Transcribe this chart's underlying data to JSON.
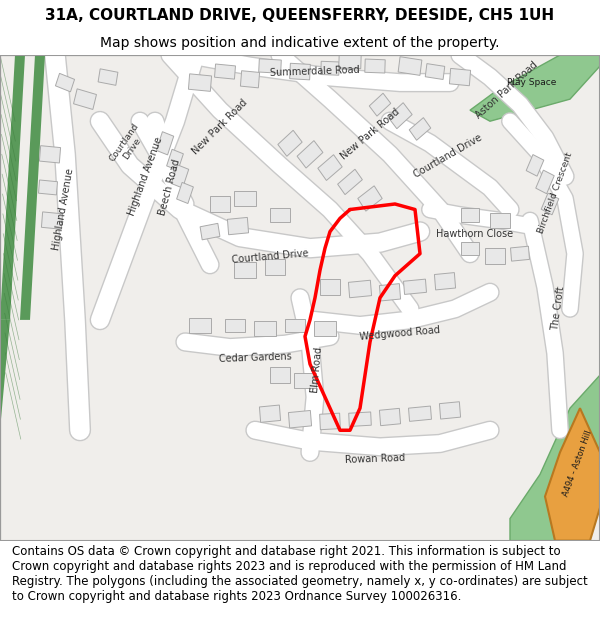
{
  "title_line1": "31A, COURTLAND DRIVE, QUEENSFERRY, DEESIDE, CH5 1UH",
  "title_line2": "Map shows position and indicative extent of the property.",
  "title_fontsize": 11,
  "subtitle_fontsize": 10,
  "footer_text": "Contains OS data © Crown copyright and database right 2021. This information is subject to Crown copyright and database rights 2023 and is reproduced with the permission of HM Land Registry. The polygons (including the associated geometry, namely x, y co-ordinates) are subject to Crown copyright and database rights 2023 Ordnance Survey 100026316.",
  "footer_fontsize": 8.5,
  "bg_color": "#f5f5f0",
  "map_bg": "#f0eeeb",
  "road_color": "#ffffff",
  "road_outline": "#c8c8c8",
  "building_fill": "#e8e8e8",
  "building_outline": "#aaaaaa",
  "green_areas": "#7fb87f",
  "green_areas2": "#9dc49d",
  "highlight_road": "#e8a040",
  "red_polygon": "#ff0000",
  "diagonal_green1": "#5a9a5a",
  "diagonal_green2": "#4a8a4a",
  "title_bg": "#ffffff",
  "footer_bg": "#ffffff",
  "map_border": "#cccccc"
}
